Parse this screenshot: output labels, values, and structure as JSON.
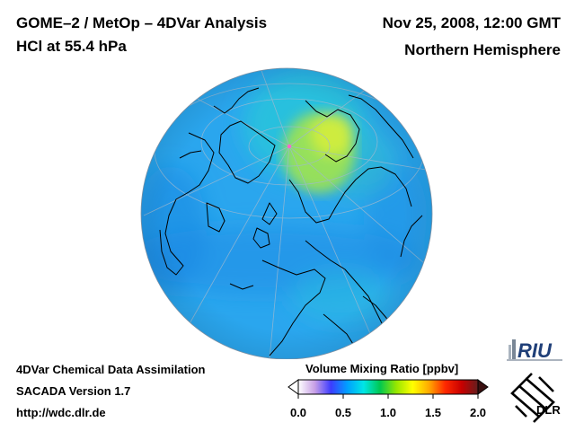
{
  "header": {
    "title_line1": "GOME–2 / MetOp – 4DVar Analysis",
    "title_line2": "HCl at 55.4 hPa",
    "date": "Nov 25, 2008, 12:00 GMT",
    "region": "Northern Hemisphere"
  },
  "footer": {
    "line1": "4DVar Chemical Data Assimilation",
    "line2": "SACADA Version 1.7",
    "url": "http://wdc.dlr.de"
  },
  "colorbar": {
    "label": "Volume Mixing Ratio [ppbv]",
    "min": 0.0,
    "max": 2.0,
    "ticks": [
      "0.0",
      "0.5",
      "1.0",
      "1.5",
      "2.0"
    ],
    "stops": [
      "#ffffff",
      "#c8a0e6",
      "#3c3cff",
      "#00a0ff",
      "#00e6e6",
      "#00c850",
      "#96e600",
      "#ffff00",
      "#ffaa00",
      "#ff2800",
      "#c80000",
      "#641e1e"
    ]
  },
  "map": {
    "projection": "orthographic, north polar view",
    "background_value_ppbv": 0.45,
    "maximum_region": "Scandinavia / Norwegian Sea",
    "maximum_value_ppbv": 1.0,
    "colors": {
      "background": "#2aa6ee",
      "low": "#1e8ce6",
      "mid": "#29c8d8",
      "high": "#a8e646",
      "peak": "#d4ee3c",
      "coast": "#000000",
      "grid": "#9fb9d0"
    }
  },
  "logos": {
    "riu": "RIU",
    "dlr": "DLR"
  }
}
